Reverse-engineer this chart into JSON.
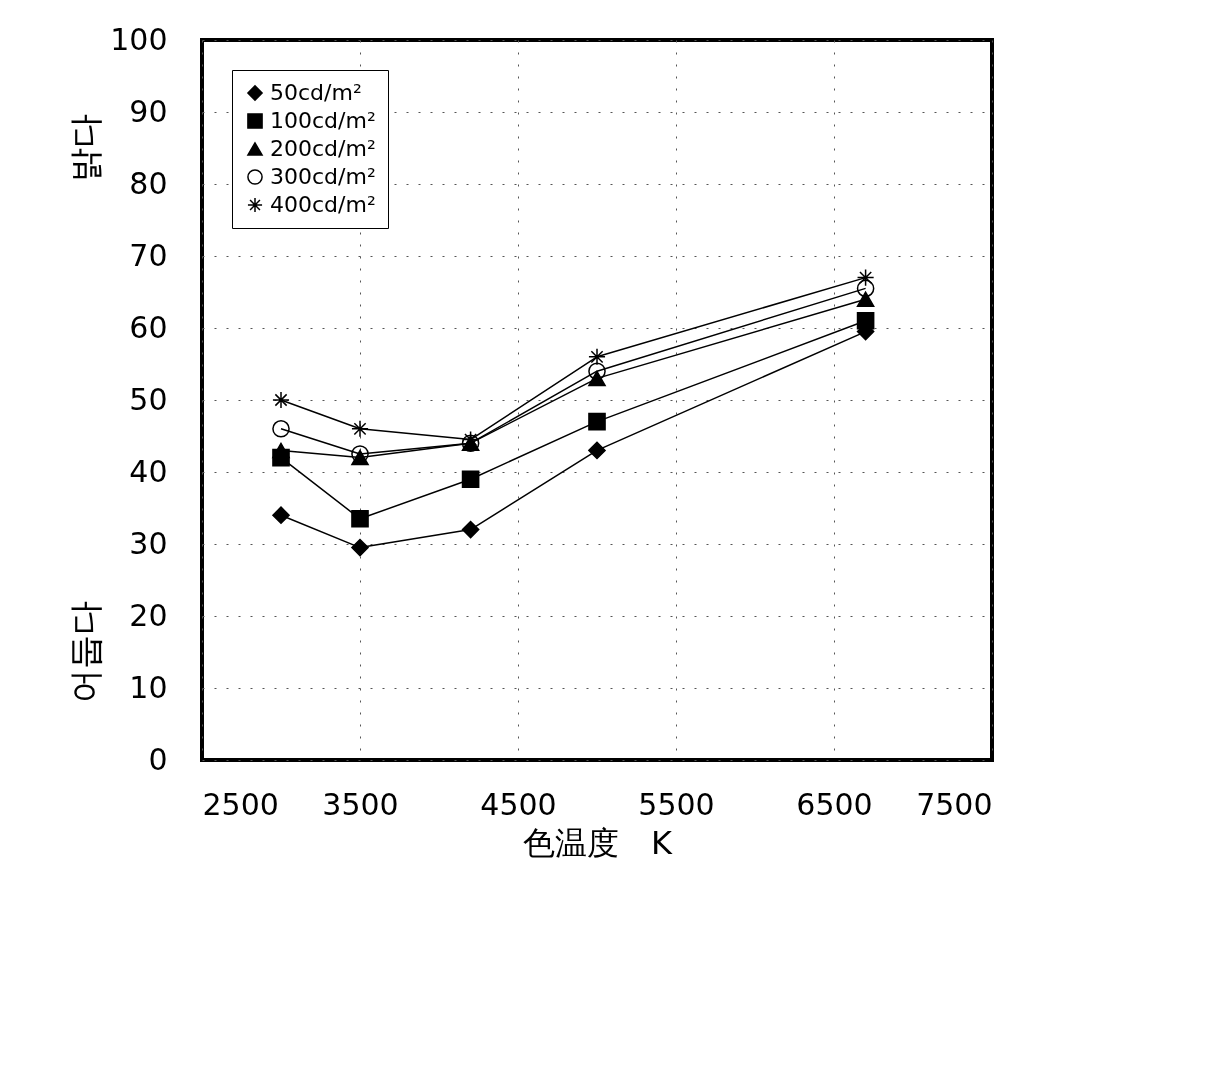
{
  "chart_data": {
    "type": "line",
    "xlabel": "色温度　K",
    "annotations": [
      "밝다",
      "어둡다"
    ],
    "x": [
      3000,
      3500,
      4200,
      5000,
      6700
    ],
    "series": [
      {
        "name": "50cd/m²",
        "color": "#000000",
        "marker": "diamond",
        "values": [
          34,
          29.5,
          32,
          43,
          59.5
        ]
      },
      {
        "name": "100cd/m²",
        "color": "#000000",
        "marker": "square",
        "values": [
          42,
          33.5,
          39,
          47,
          61
        ]
      },
      {
        "name": "200cd/m²",
        "color": "#000000",
        "marker": "triangle",
        "values": [
          43,
          42,
          44,
          53,
          64
        ]
      },
      {
        "name": "300cd/m²",
        "color": "#000000",
        "marker": "circle",
        "values": [
          46,
          42.5,
          44,
          54,
          65.5
        ]
      },
      {
        "name": "400cd/m²",
        "color": "#000000",
        "marker": "cross",
        "values": [
          50,
          46,
          44.5,
          56,
          67
        ]
      }
    ],
    "xlim": [
      2500,
      7500
    ],
    "xticks": [
      2500,
      3500,
      4500,
      5500,
      6500,
      7500
    ],
    "ylim": [
      0,
      100
    ],
    "yticks": [
      0,
      10,
      20,
      30,
      40,
      50,
      60,
      70,
      80,
      90,
      100
    ],
    "grid": true,
    "legend": "top left",
    "line_style": "solid"
  }
}
